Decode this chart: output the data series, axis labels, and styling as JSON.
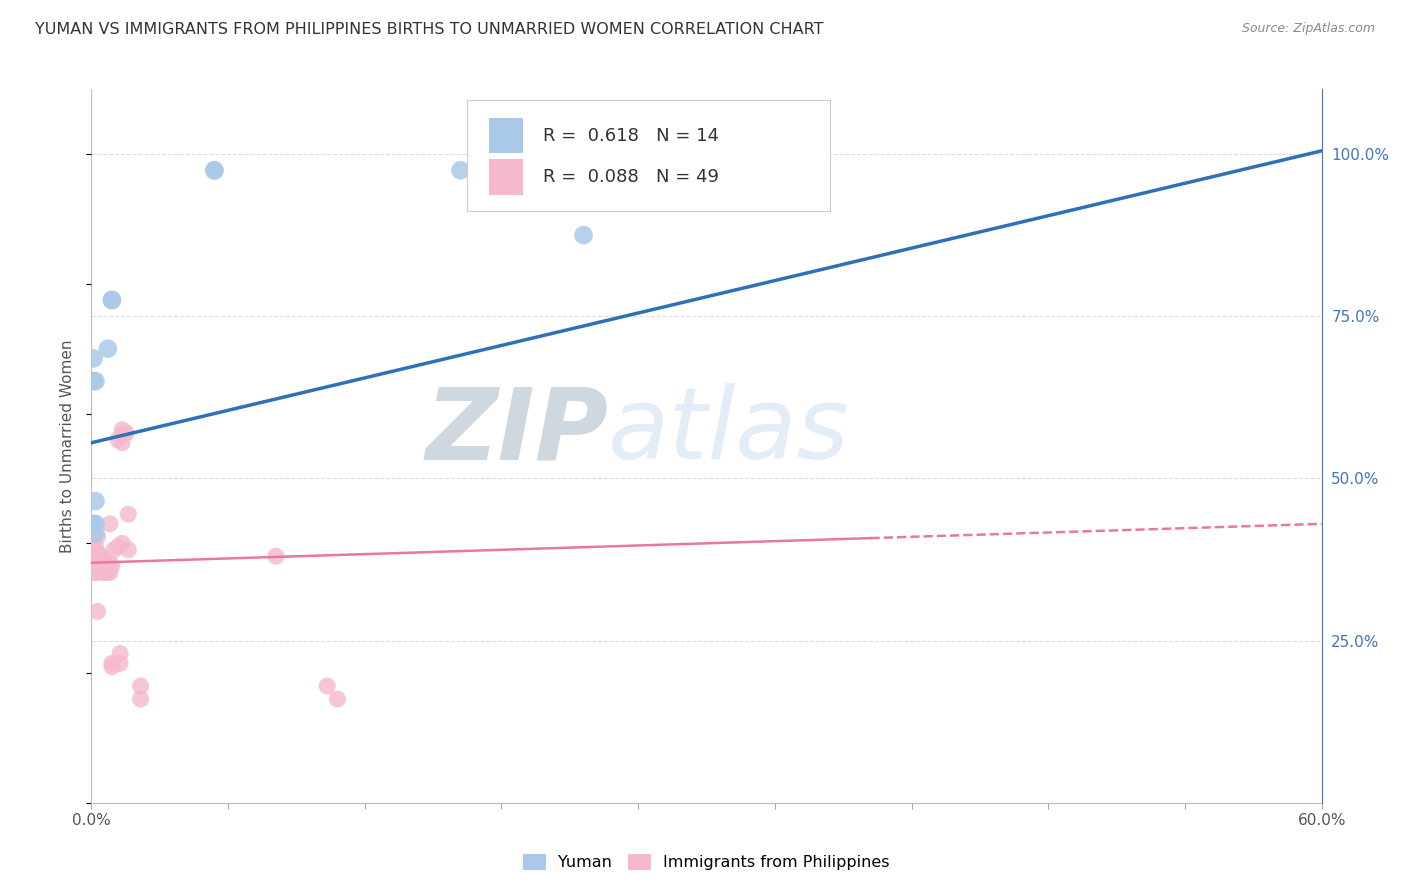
{
  "title": "YUMAN VS IMMIGRANTS FROM PHILIPPINES BIRTHS TO UNMARRIED WOMEN CORRELATION CHART",
  "source": "Source: ZipAtlas.com",
  "ylabel": "Births to Unmarried Women",
  "legend_blue_r": "0.618",
  "legend_blue_n": "14",
  "legend_pink_r": "0.088",
  "legend_pink_n": "49",
  "legend_label_blue": "Yuman",
  "legend_label_pink": "Immigrants from Philippines",
  "blue_scatter_color": "#aac9e8",
  "pink_scatter_color": "#f5b8cc",
  "blue_line_color": "#3070b8",
  "pink_line_color": "#e8799a",
  "right_axis_color": "#4472c4",
  "xlim": [
    0.0,
    0.6
  ],
  "ylim": [
    0.0,
    1.1
  ],
  "y_ticks_right": [
    0.25,
    0.5,
    0.75,
    1.0
  ],
  "blue_points_x": [
    0.001,
    0.002,
    0.001,
    0.008,
    0.002,
    0.002,
    0.001,
    0.01,
    0.01,
    0.002,
    0.06,
    0.06,
    0.18,
    0.24
  ],
  "blue_points_y": [
    0.65,
    0.65,
    0.685,
    0.7,
    0.465,
    0.43,
    0.43,
    0.775,
    0.775,
    0.415,
    0.975,
    0.975,
    0.975,
    0.875
  ],
  "pink_points_x": [
    0.001,
    0.001,
    0.001,
    0.001,
    0.002,
    0.002,
    0.002,
    0.002,
    0.003,
    0.003,
    0.003,
    0.003,
    0.003,
    0.004,
    0.004,
    0.004,
    0.005,
    0.005,
    0.006,
    0.006,
    0.006,
    0.006,
    0.006,
    0.007,
    0.007,
    0.008,
    0.009,
    0.009,
    0.009,
    0.01,
    0.01,
    0.01,
    0.011,
    0.013,
    0.013,
    0.014,
    0.014,
    0.015,
    0.015,
    0.015,
    0.016,
    0.017,
    0.018,
    0.018,
    0.024,
    0.024,
    0.09,
    0.115,
    0.12
  ],
  "pink_points_y": [
    0.385,
    0.37,
    0.355,
    0.375,
    0.38,
    0.395,
    0.37,
    0.36,
    0.385,
    0.375,
    0.355,
    0.295,
    0.41,
    0.38,
    0.37,
    0.365,
    0.38,
    0.375,
    0.365,
    0.37,
    0.375,
    0.365,
    0.355,
    0.36,
    0.355,
    0.36,
    0.43,
    0.37,
    0.355,
    0.215,
    0.21,
    0.365,
    0.39,
    0.56,
    0.395,
    0.215,
    0.23,
    0.575,
    0.555,
    0.4,
    0.57,
    0.57,
    0.445,
    0.39,
    0.18,
    0.16,
    0.38,
    0.18,
    0.16
  ],
  "blue_line_x0": 0.0,
  "blue_line_x1": 0.6,
  "blue_line_y0": 0.555,
  "blue_line_y1": 1.005,
  "pink_line_x0": 0.0,
  "pink_line_x1": 0.6,
  "pink_line_y0": 0.37,
  "pink_line_y1": 0.43
}
